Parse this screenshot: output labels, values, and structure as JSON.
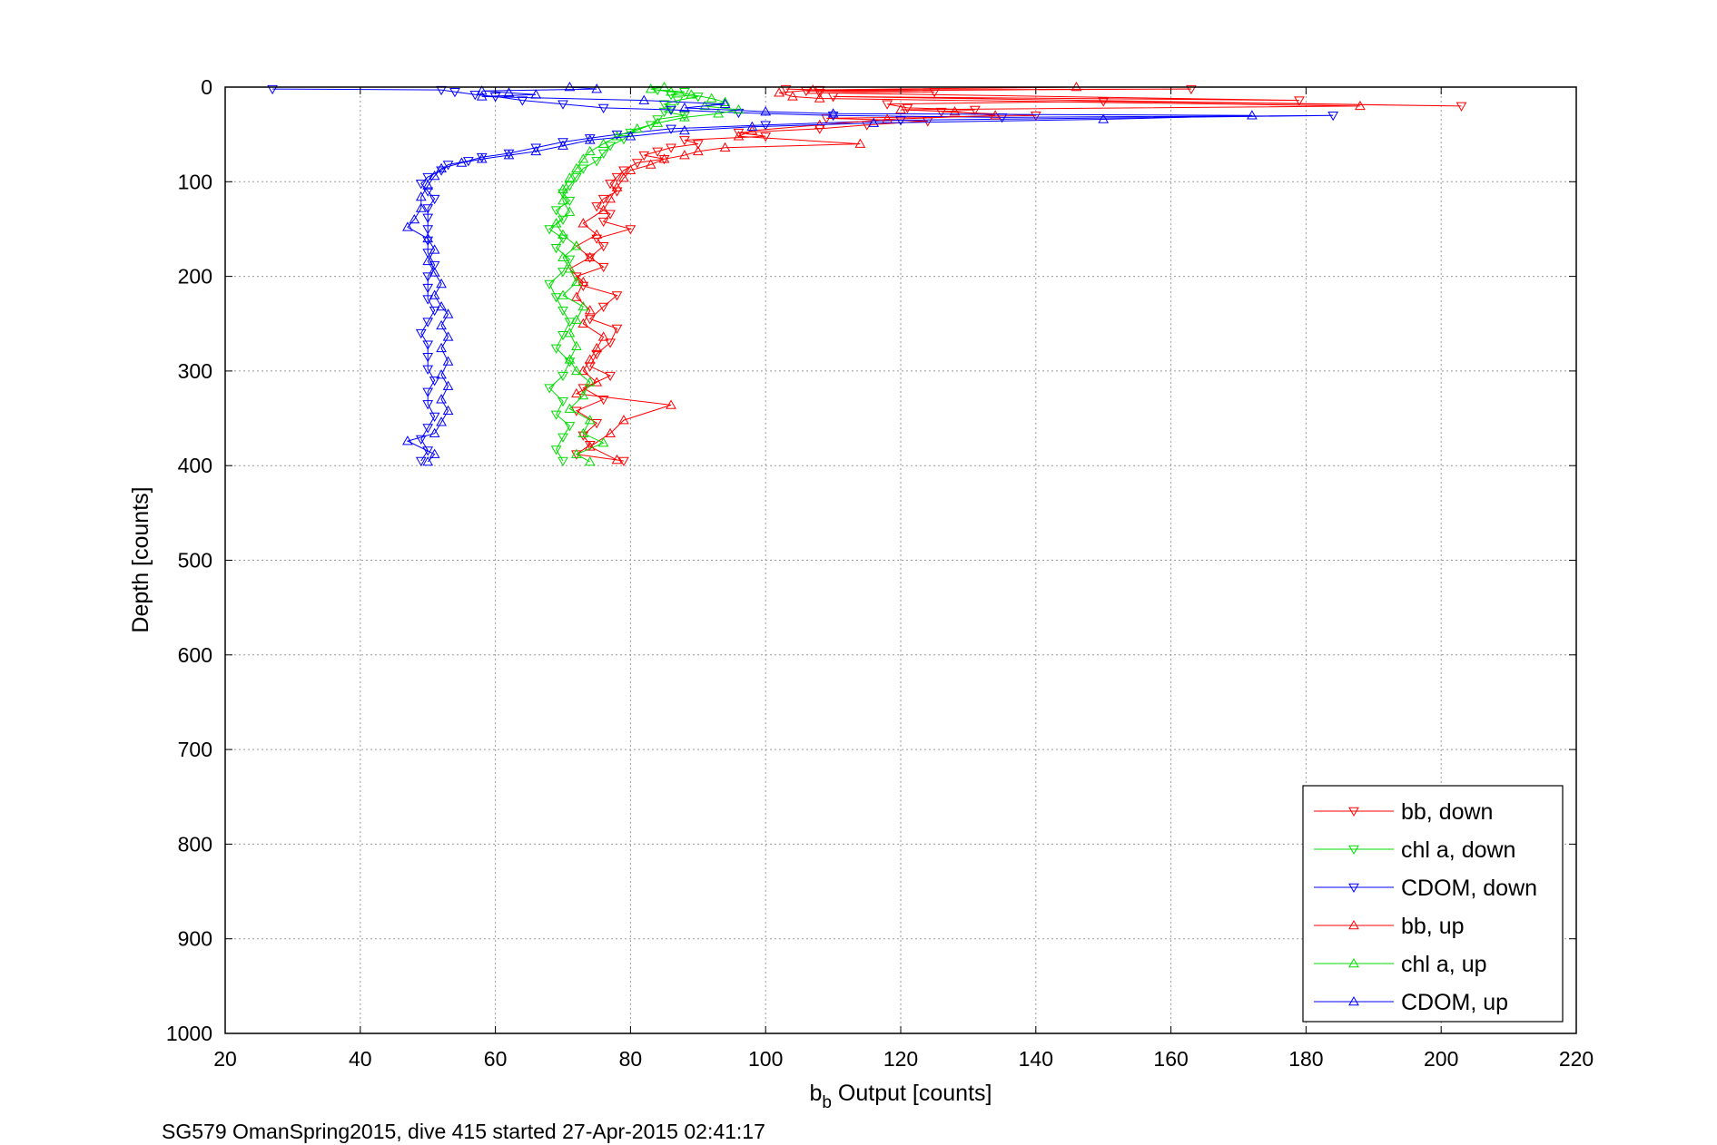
{
  "chart_data": {
    "type": "scatter",
    "xlabel_main": "b",
    "xlabel_sub": "b",
    "xlabel_rest": " Output [counts]",
    "ylabel": "Depth [counts]",
    "caption": "SG579 OmanSpring2015, dive 415 started 27-Apr-2015 02:41:17",
    "xlim": [
      20,
      220
    ],
    "ylim": [
      0,
      1000
    ],
    "y_reversed": true,
    "grid": true,
    "legend_position": "bottom-right",
    "x_ticks": [
      20,
      40,
      60,
      80,
      100,
      120,
      140,
      160,
      180,
      200,
      220
    ],
    "y_ticks": [
      0,
      100,
      200,
      300,
      400,
      500,
      600,
      700,
      800,
      900,
      1000
    ],
    "series": [
      {
        "name": "bb, down",
        "color": "#ff0000",
        "marker": "triangle-down",
        "points": [
          [
            103,
            2
          ],
          [
            108,
            3
          ],
          [
            163,
            2
          ],
          [
            106,
            4
          ],
          [
            125,
            5
          ],
          [
            108,
            6
          ],
          [
            179,
            14
          ],
          [
            110,
            10
          ],
          [
            203,
            20
          ],
          [
            150,
            15
          ],
          [
            118,
            18
          ],
          [
            121,
            22
          ],
          [
            131,
            24
          ],
          [
            126,
            26
          ],
          [
            140,
            30
          ],
          [
            109,
            33
          ],
          [
            124,
            36
          ],
          [
            115,
            40
          ],
          [
            108,
            44
          ],
          [
            96,
            48
          ],
          [
            100,
            52
          ],
          [
            88,
            56
          ],
          [
            90,
            60
          ],
          [
            86,
            64
          ],
          [
            84,
            68
          ],
          [
            82,
            72
          ],
          [
            85,
            76
          ],
          [
            81,
            80
          ],
          [
            79,
            88
          ],
          [
            78,
            95
          ],
          [
            77,
            102
          ],
          [
            78,
            110
          ],
          [
            76,
            118
          ],
          [
            75,
            126
          ],
          [
            77,
            134
          ],
          [
            76,
            142
          ],
          [
            80,
            150
          ],
          [
            75,
            160
          ],
          [
            76,
            168
          ],
          [
            74,
            180
          ],
          [
            76,
            190
          ],
          [
            72,
            200
          ],
          [
            73,
            210
          ],
          [
            78,
            220
          ],
          [
            76,
            232
          ],
          [
            74,
            245
          ],
          [
            78,
            255
          ],
          [
            77,
            270
          ],
          [
            75,
            282
          ],
          [
            74,
            295
          ],
          [
            77,
            305
          ],
          [
            73,
            318
          ],
          [
            76,
            330
          ],
          [
            72,
            342
          ],
          [
            75,
            355
          ],
          [
            73,
            368
          ],
          [
            74,
            378
          ],
          [
            72,
            388
          ],
          [
            79,
            395
          ]
        ]
      },
      {
        "name": "chl a, down",
        "color": "#00dd00",
        "marker": "triangle-down",
        "points": [
          [
            84,
            3
          ],
          [
            88,
            5
          ],
          [
            86,
            8
          ],
          [
            90,
            10
          ],
          [
            87,
            14
          ],
          [
            85,
            18
          ],
          [
            86,
            22
          ],
          [
            85,
            26
          ],
          [
            88,
            30
          ],
          [
            84,
            34
          ],
          [
            83,
            40
          ],
          [
            80,
            48
          ],
          [
            79,
            55
          ],
          [
            77,
            62
          ],
          [
            76,
            70
          ],
          [
            75,
            78
          ],
          [
            73,
            86
          ],
          [
            72,
            95
          ],
          [
            71,
            104
          ],
          [
            70,
            112
          ],
          [
            71,
            120
          ],
          [
            69,
            130
          ],
          [
            70,
            140
          ],
          [
            68,
            150
          ],
          [
            70,
            160
          ],
          [
            69,
            170
          ],
          [
            71,
            182
          ],
          [
            70,
            195
          ],
          [
            68,
            208
          ],
          [
            69,
            222
          ],
          [
            70,
            236
          ],
          [
            71,
            248
          ],
          [
            70,
            262
          ],
          [
            69,
            276
          ],
          [
            71,
            290
          ],
          [
            70,
            305
          ],
          [
            68,
            318
          ],
          [
            70,
            332
          ],
          [
            69,
            346
          ],
          [
            71,
            358
          ],
          [
            70,
            370
          ],
          [
            69,
            383
          ],
          [
            70,
            395
          ]
        ]
      },
      {
        "name": "CDOM, down",
        "color": "#0000ff",
        "marker": "triangle-down",
        "points": [
          [
            27,
            2
          ],
          [
            52,
            3
          ],
          [
            54,
            5
          ],
          [
            57,
            8
          ],
          [
            60,
            10
          ],
          [
            64,
            14
          ],
          [
            70,
            18
          ],
          [
            76,
            22
          ],
          [
            86,
            24
          ],
          [
            96,
            27
          ],
          [
            110,
            30
          ],
          [
            135,
            32
          ],
          [
            184,
            30
          ],
          [
            120,
            35
          ],
          [
            100,
            40
          ],
          [
            86,
            44
          ],
          [
            78,
            50
          ],
          [
            74,
            54
          ],
          [
            70,
            58
          ],
          [
            66,
            64
          ],
          [
            62,
            70
          ],
          [
            58,
            74
          ],
          [
            56,
            78
          ],
          [
            53,
            82
          ],
          [
            52,
            88
          ],
          [
            50,
            95
          ],
          [
            49,
            102
          ],
          [
            50,
            110
          ],
          [
            51,
            118
          ],
          [
            50,
            128
          ],
          [
            50,
            138
          ],
          [
            50,
            150
          ],
          [
            50,
            162
          ],
          [
            50,
            175
          ],
          [
            51,
            188
          ],
          [
            50,
            200
          ],
          [
            50,
            212
          ],
          [
            50,
            224
          ],
          [
            51,
            236
          ],
          [
            50,
            248
          ],
          [
            49,
            260
          ],
          [
            50,
            272
          ],
          [
            50,
            285
          ],
          [
            50,
            298
          ],
          [
            51,
            310
          ],
          [
            50,
            322
          ],
          [
            50,
            335
          ],
          [
            51,
            348
          ],
          [
            50,
            360
          ],
          [
            49,
            372
          ],
          [
            50,
            384
          ],
          [
            49,
            395
          ]
        ]
      },
      {
        "name": "bb, up",
        "color": "#ff0000",
        "marker": "triangle-up",
        "points": [
          [
            146,
            0
          ],
          [
            107,
            3
          ],
          [
            102,
            6
          ],
          [
            104,
            10
          ],
          [
            108,
            12
          ],
          [
            188,
            20
          ],
          [
            120,
            24
          ],
          [
            128,
            26
          ],
          [
            134,
            30
          ],
          [
            118,
            34
          ],
          [
            108,
            40
          ],
          [
            98,
            46
          ],
          [
            96,
            52
          ],
          [
            114,
            60
          ],
          [
            94,
            64
          ],
          [
            90,
            68
          ],
          [
            88,
            72
          ],
          [
            85,
            76
          ],
          [
            83,
            82
          ],
          [
            80,
            88
          ],
          [
            79,
            96
          ],
          [
            78,
            106
          ],
          [
            77,
            118
          ],
          [
            76,
            130
          ],
          [
            73,
            144
          ],
          [
            75,
            156
          ],
          [
            72,
            168
          ],
          [
            74,
            180
          ],
          [
            71,
            192
          ],
          [
            73,
            206
          ],
          [
            72,
            222
          ],
          [
            74,
            236
          ],
          [
            73,
            250
          ],
          [
            76,
            264
          ],
          [
            75,
            276
          ],
          [
            74,
            288
          ],
          [
            73,
            300
          ],
          [
            75,
            312
          ],
          [
            72,
            324
          ],
          [
            86,
            336
          ],
          [
            79,
            352
          ],
          [
            77,
            366
          ],
          [
            74,
            380
          ],
          [
            78,
            394
          ]
        ]
      },
      {
        "name": "chl a, up",
        "color": "#00dd00",
        "marker": "triangle-up",
        "points": [
          [
            85,
            0
          ],
          [
            83,
            2
          ],
          [
            86,
            5
          ],
          [
            89,
            8
          ],
          [
            92,
            12
          ],
          [
            94,
            16
          ],
          [
            91,
            20
          ],
          [
            96,
            24
          ],
          [
            93,
            28
          ],
          [
            88,
            32
          ],
          [
            84,
            38
          ],
          [
            81,
            44
          ],
          [
            78,
            52
          ],
          [
            76,
            60
          ],
          [
            74,
            68
          ],
          [
            73,
            76
          ],
          [
            72,
            86
          ],
          [
            71,
            96
          ],
          [
            70,
            108
          ],
          [
            70,
            120
          ],
          [
            71,
            132
          ],
          [
            69,
            144
          ],
          [
            70,
            156
          ],
          [
            72,
            168
          ],
          [
            70,
            180
          ],
          [
            71,
            192
          ],
          [
            72,
            206
          ],
          [
            70,
            220
          ],
          [
            73,
            232
          ],
          [
            72,
            246
          ],
          [
            71,
            260
          ],
          [
            72,
            274
          ],
          [
            71,
            288
          ],
          [
            72,
            300
          ],
          [
            74,
            312
          ],
          [
            73,
            326
          ],
          [
            71,
            340
          ],
          [
            74,
            352
          ],
          [
            73,
            366
          ],
          [
            76,
            376
          ],
          [
            72,
            388
          ],
          [
            74,
            396
          ]
        ]
      },
      {
        "name": "CDOM, up",
        "color": "#0000ff",
        "marker": "triangle-up",
        "points": [
          [
            71,
            0
          ],
          [
            75,
            2
          ],
          [
            58,
            4
          ],
          [
            62,
            6
          ],
          [
            66,
            8
          ],
          [
            58,
            10
          ],
          [
            82,
            14
          ],
          [
            94,
            18
          ],
          [
            88,
            22
          ],
          [
            100,
            26
          ],
          [
            110,
            28
          ],
          [
            172,
            30
          ],
          [
            150,
            34
          ],
          [
            116,
            38
          ],
          [
            98,
            42
          ],
          [
            88,
            46
          ],
          [
            80,
            52
          ],
          [
            74,
            56
          ],
          [
            70,
            62
          ],
          [
            66,
            68
          ],
          [
            62,
            72
          ],
          [
            58,
            76
          ],
          [
            55,
            80
          ],
          [
            52,
            86
          ],
          [
            51,
            94
          ],
          [
            50,
            104
          ],
          [
            49,
            116
          ],
          [
            49,
            128
          ],
          [
            48,
            140
          ],
          [
            47,
            148
          ],
          [
            50,
            160
          ],
          [
            51,
            172
          ],
          [
            50,
            184
          ],
          [
            51,
            196
          ],
          [
            52,
            208
          ],
          [
            51,
            220
          ],
          [
            52,
            232
          ],
          [
            53,
            240
          ],
          [
            52,
            252
          ],
          [
            53,
            264
          ],
          [
            52,
            276
          ],
          [
            53,
            290
          ],
          [
            52,
            304
          ],
          [
            53,
            316
          ],
          [
            52,
            330
          ],
          [
            53,
            342
          ],
          [
            52,
            354
          ],
          [
            51,
            366
          ],
          [
            47,
            374
          ],
          [
            51,
            388
          ],
          [
            50,
            396
          ]
        ]
      }
    ]
  }
}
